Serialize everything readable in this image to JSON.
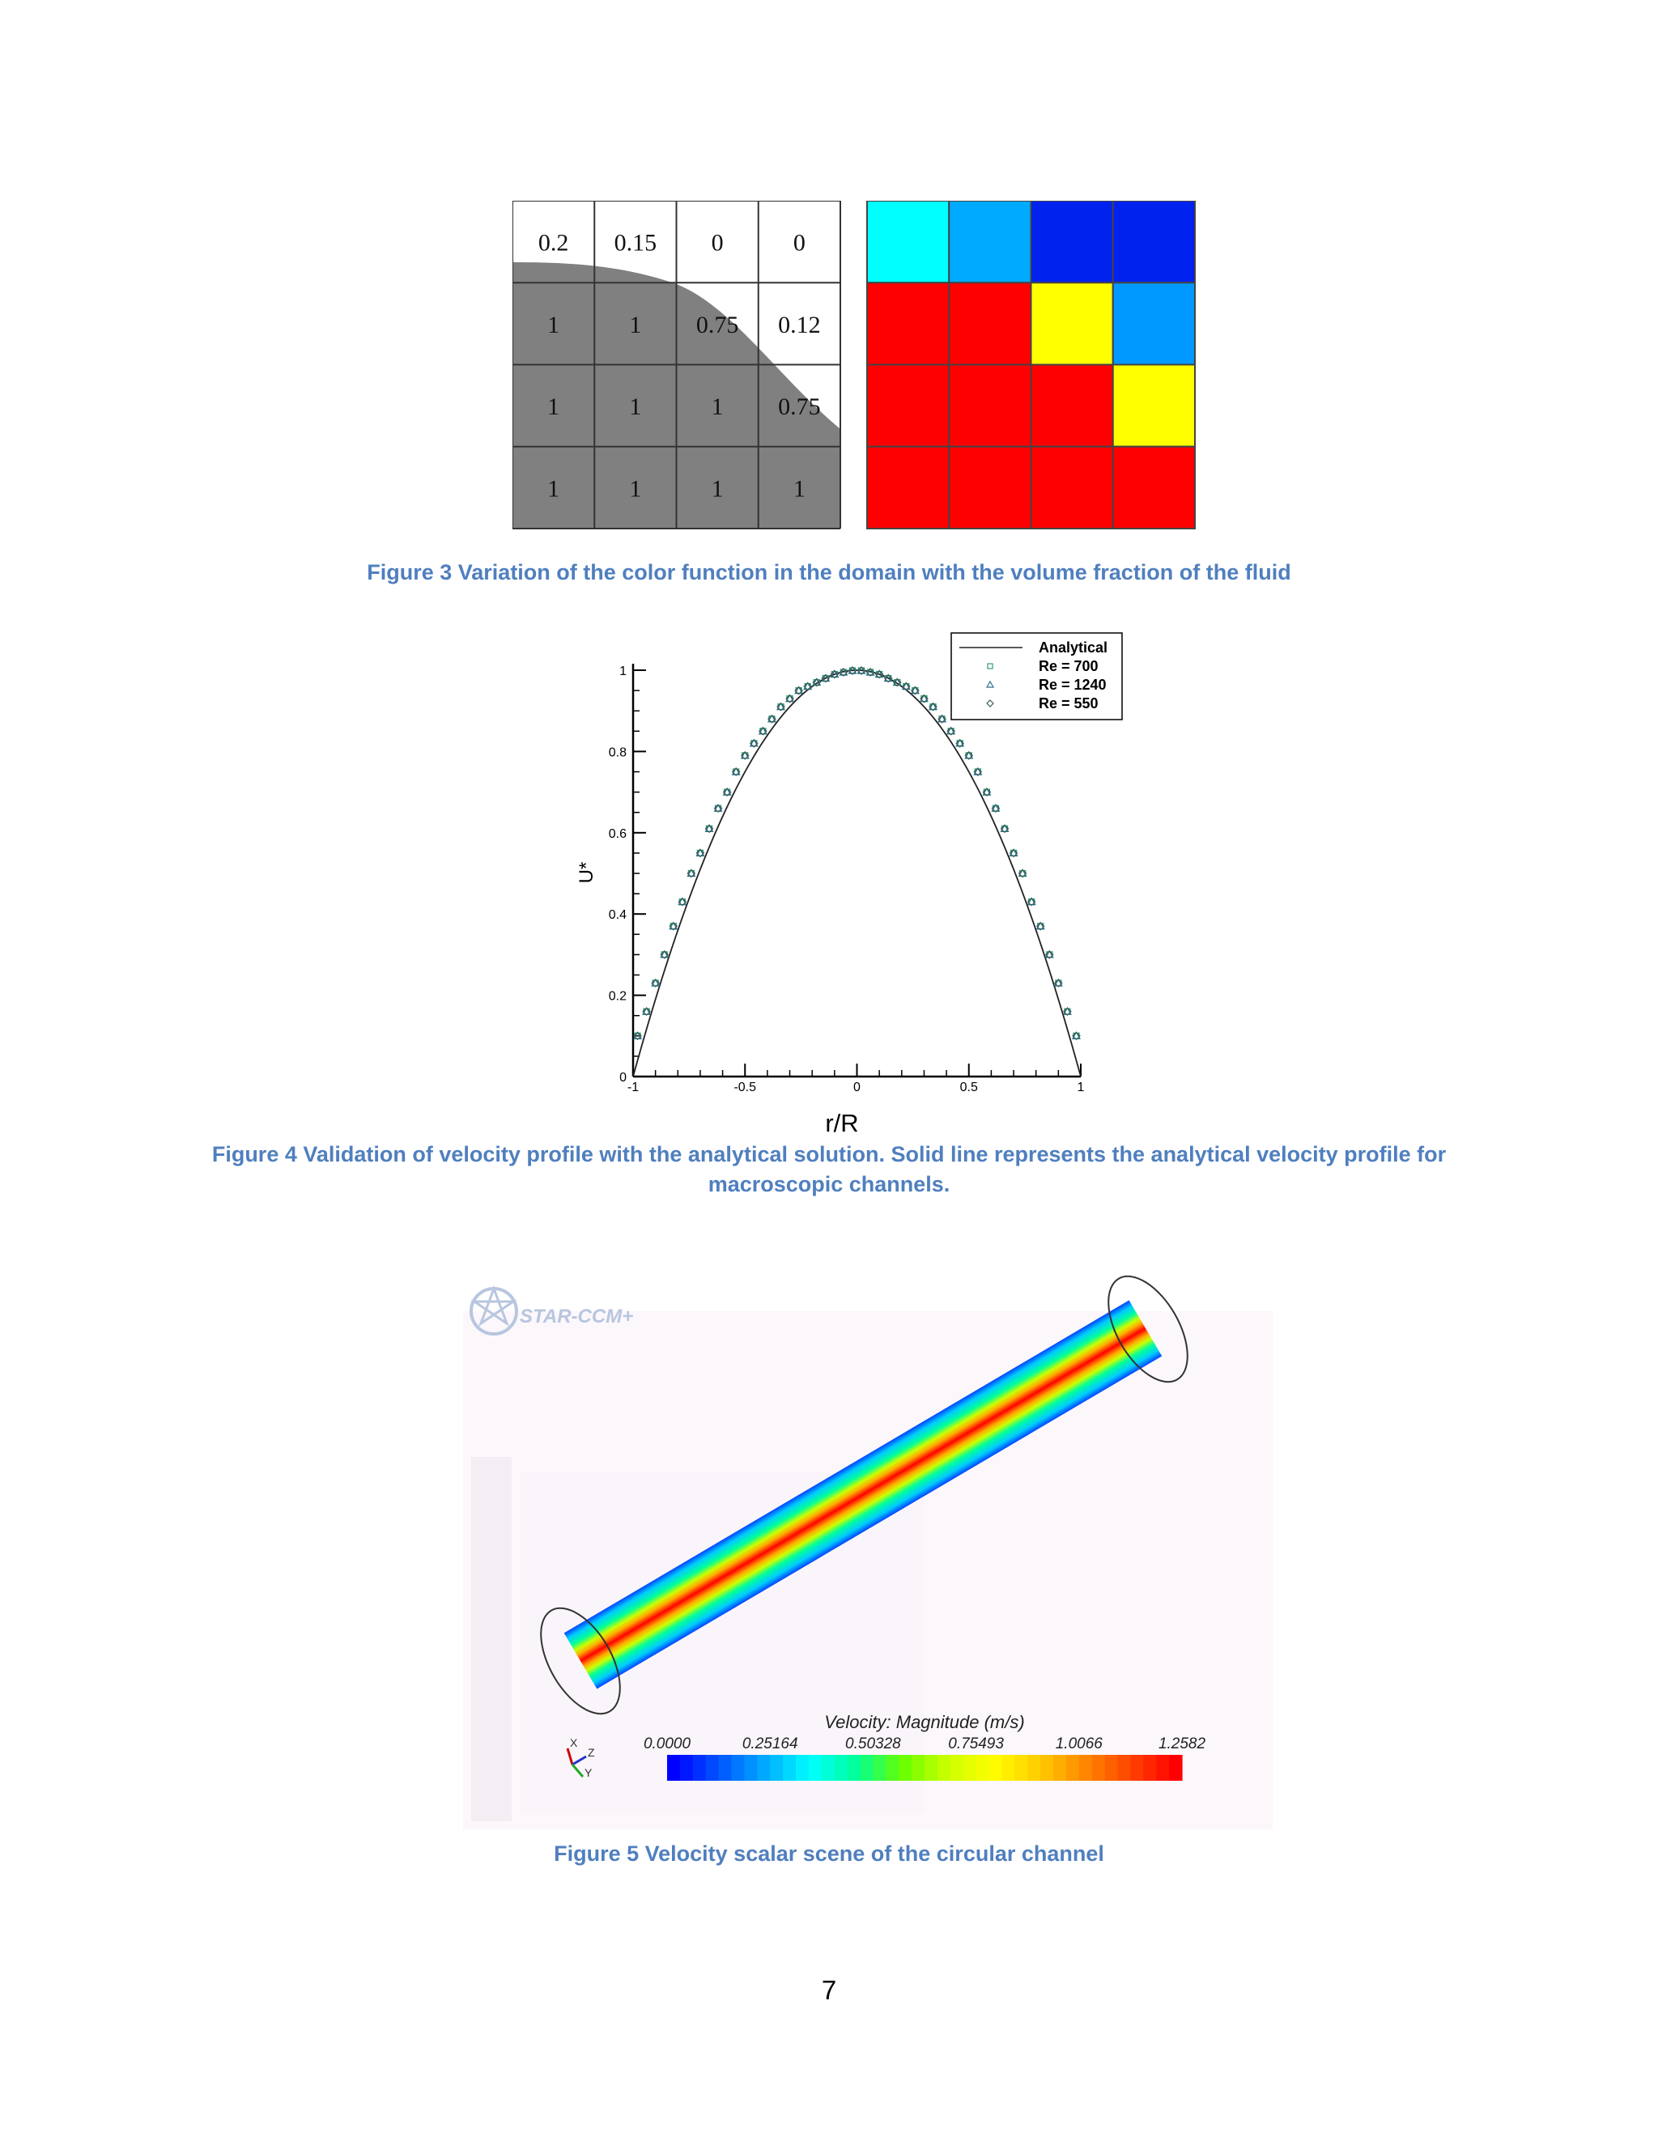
{
  "figure3": {
    "caption": "Figure 3 Variation of the color function in the domain with the volume fraction of the fluid",
    "grid_values": [
      [
        "0.2",
        "0.15",
        "0",
        "0"
      ],
      [
        "1",
        "1",
        "0.75",
        "0.12"
      ],
      [
        "1",
        "1",
        "1",
        "0.75"
      ],
      [
        "1",
        "1",
        "1",
        "1"
      ]
    ],
    "fluid_color": "#808080",
    "color_grid": [
      [
        "#00ffff",
        "#00aaff",
        "#0022ee",
        "#0022ee"
      ],
      [
        "#ff0000",
        "#ff0000",
        "#ffff00",
        "#0099ff"
      ],
      [
        "#ff0000",
        "#ff0000",
        "#ff0000",
        "#ffff00"
      ],
      [
        "#ff0000",
        "#ff0000",
        "#ff0000",
        "#ff0000"
      ]
    ]
  },
  "figure4": {
    "caption_line1": "Figure 4 Validation of velocity profile with the analytical solution. Solid line represents the analytical velocity profile for",
    "caption_line2": "macroscopic channels.",
    "chart_data": {
      "type": "scatter",
      "xlabel": "r/R",
      "ylabel": "U*",
      "xlim": [
        -1,
        1
      ],
      "ylim": [
        0,
        1
      ],
      "x_ticks": [
        "-1",
        "-0.5",
        "0",
        "0.5",
        "1"
      ],
      "y_ticks": [
        "0",
        "0.2",
        "0.4",
        "0.6",
        "0.8",
        "1"
      ],
      "legend_position": "top-right",
      "series": [
        {
          "name": "Analytical",
          "marker": "line",
          "function": "1 - x^2"
        },
        {
          "name": "Re = 700",
          "marker": "square"
        },
        {
          "name": "Re = 1240",
          "marker": "triangle"
        },
        {
          "name": "Re = 550",
          "marker": "diamond"
        }
      ],
      "x": [
        -0.98,
        -0.94,
        -0.9,
        -0.86,
        -0.82,
        -0.78,
        -0.74,
        -0.7,
        -0.66,
        -0.62,
        -0.58,
        -0.54,
        -0.5,
        -0.46,
        -0.42,
        -0.38,
        -0.34,
        -0.3,
        -0.26,
        -0.22,
        -0.18,
        -0.14,
        -0.1,
        -0.06,
        -0.02,
        0.02,
        0.06,
        0.1,
        0.14,
        0.18,
        0.22,
        0.26,
        0.3,
        0.34,
        0.38,
        0.42,
        0.46,
        0.5,
        0.54,
        0.58,
        0.62,
        0.66,
        0.7,
        0.74,
        0.78,
        0.82,
        0.86,
        0.9,
        0.94,
        0.98
      ],
      "y": [
        0.1,
        0.16,
        0.23,
        0.3,
        0.37,
        0.43,
        0.5,
        0.55,
        0.61,
        0.66,
        0.7,
        0.75,
        0.79,
        0.82,
        0.85,
        0.88,
        0.91,
        0.93,
        0.95,
        0.96,
        0.97,
        0.98,
        0.99,
        0.995,
        0.999,
        0.999,
        0.995,
        0.99,
        0.98,
        0.97,
        0.96,
        0.95,
        0.93,
        0.91,
        0.88,
        0.85,
        0.82,
        0.79,
        0.75,
        0.7,
        0.66,
        0.61,
        0.55,
        0.5,
        0.43,
        0.37,
        0.3,
        0.23,
        0.16,
        0.1
      ]
    }
  },
  "figure5": {
    "caption": "Figure 5 Velocity scalar scene of the circular channel",
    "logo_text": "STAR-CCM+",
    "colorbar_title": "Velocity: Magnitude (m/s)",
    "colorbar_ticks": [
      "0.0000",
      "0.25164",
      "0.50328",
      "0.75493",
      "1.0066",
      "1.2582"
    ],
    "colorbar_colors": [
      "#0000ff",
      "#0055ff",
      "#00aaff",
      "#00ffff",
      "#00ff99",
      "#66ff00",
      "#ccff00",
      "#ffff00",
      "#ffcc00",
      "#ff8800",
      "#ff4400",
      "#ff0000"
    ],
    "axis_labels": [
      "X",
      "Z",
      "Y"
    ]
  },
  "page_number": "7"
}
